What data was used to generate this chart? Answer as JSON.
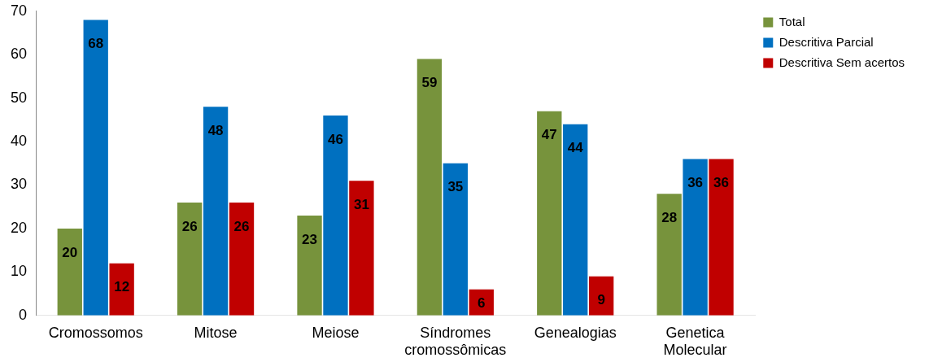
{
  "chart_data": {
    "type": "bar",
    "categories": [
      "Cromossomos",
      "Mitose",
      "Meiose",
      "Síndromes cromossômicas",
      "Genealogias",
      "Genetica Molecular"
    ],
    "series": [
      {
        "name": "Total",
        "color": "#77933c",
        "values": [
          20,
          26,
          23,
          59,
          47,
          28
        ]
      },
      {
        "name": "Descritiva Parcial",
        "color": "#0070c0",
        "values": [
          68,
          48,
          46,
          35,
          44,
          36
        ]
      },
      {
        "name": "Descritiva Sem acertos",
        "color": "#c00000",
        "values": [
          12,
          26,
          31,
          6,
          9,
          36
        ]
      }
    ],
    "ylim": [
      0,
      70
    ],
    "yticks": [
      0,
      10,
      20,
      30,
      40,
      50,
      60,
      70
    ],
    "grid": false,
    "legend": "top right",
    "data_labels": true
  }
}
